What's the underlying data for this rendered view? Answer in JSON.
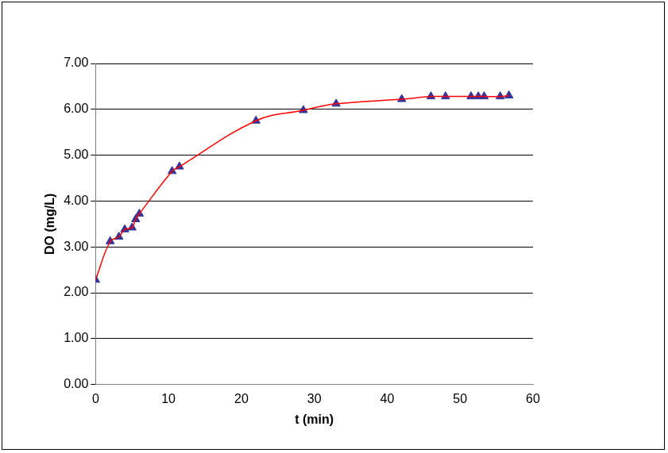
{
  "chart_data": {
    "type": "scatter",
    "x_label": "t (min)",
    "y_label": "DO (mg/L)",
    "x": [
      0,
      2,
      3.2,
      4,
      5,
      5.5,
      6,
      10.5,
      11.5,
      22,
      28.5,
      33,
      42,
      46,
      48,
      51.5,
      52.5,
      53.3,
      55.5,
      56.7
    ],
    "series": [
      {
        "type": "line",
        "color": "#ff0000",
        "line_style": "solid",
        "marker": "none",
        "values": [
          2.28,
          3.12,
          3.22,
          3.38,
          3.42,
          3.6,
          3.72,
          4.65,
          4.75,
          5.75,
          5.98,
          6.12,
          6.22,
          6.28,
          6.28,
          6.28,
          6.28,
          6.28,
          6.28,
          6.3
        ]
      },
      {
        "type": "scatter",
        "color": "#333399",
        "marker": "triangle",
        "values": [
          2.28,
          3.12,
          3.22,
          3.38,
          3.42,
          3.6,
          3.72,
          4.65,
          4.75,
          5.75,
          5.98,
          6.12,
          6.22,
          6.28,
          6.28,
          6.28,
          6.28,
          6.28,
          6.28,
          6.3
        ]
      }
    ],
    "xlim": [
      0,
      60
    ],
    "xticks": [
      0,
      10,
      20,
      30,
      40,
      50,
      60
    ],
    "ylim": [
      0,
      7
    ],
    "yticks": [
      {
        "value": 0,
        "label": "0.00"
      },
      {
        "value": 1,
        "label": "1.00"
      },
      {
        "value": 2,
        "label": "2.00"
      },
      {
        "value": 3,
        "label": "3.00"
      },
      {
        "value": 4,
        "label": "4.00"
      },
      {
        "value": 5,
        "label": "5.00"
      },
      {
        "value": 6,
        "label": "6.00"
      },
      {
        "value": 7,
        "label": "7.00"
      }
    ],
    "grid": true
  }
}
